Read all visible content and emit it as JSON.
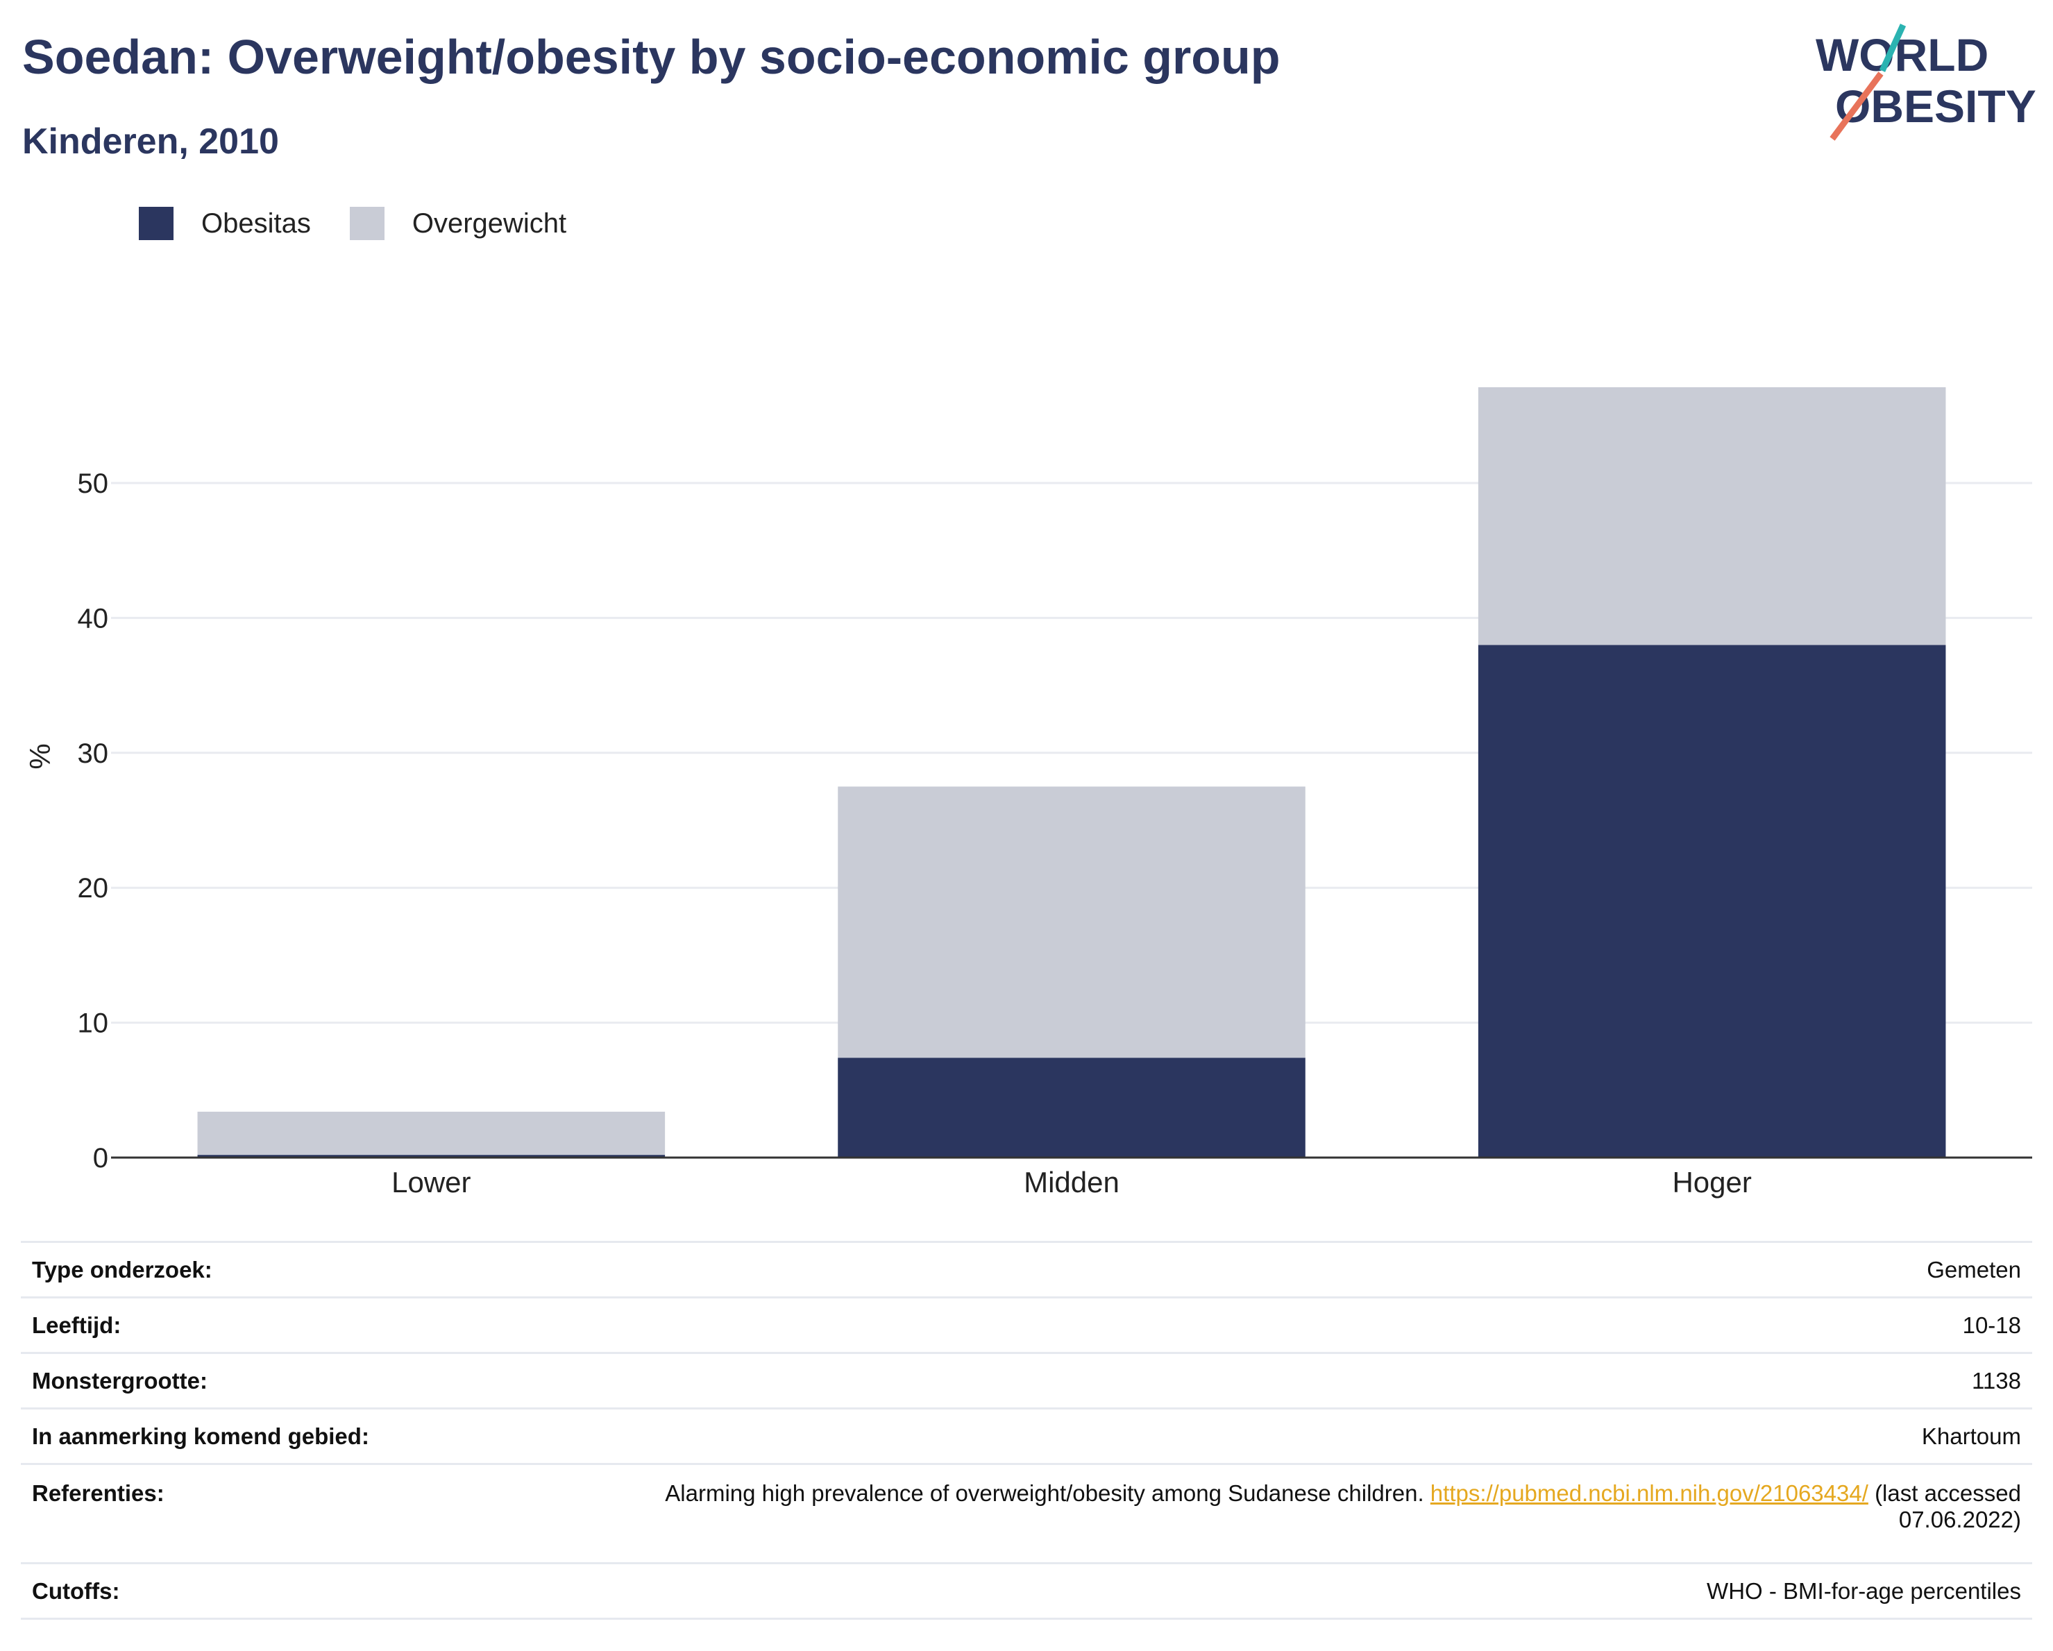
{
  "header": {
    "title": "Soedan: Overweight/obesity by socio-economic group",
    "subtitle": "Kinderen, 2010"
  },
  "logo": {
    "line1": "WORLD",
    "line2": "OBESITY",
    "colors": {
      "text": "#2b365f",
      "slash_top": "#2bb3b1",
      "slash_bottom": "#e8735a"
    }
  },
  "legend": [
    {
      "label": "Obesitas",
      "color": "#2b365f"
    },
    {
      "label": "Overgewicht",
      "color": "#c9ccd6"
    }
  ],
  "chart_data": {
    "type": "bar",
    "stacked": true,
    "title": "",
    "xlabel": "",
    "ylabel": "%",
    "ylim": [
      0,
      60
    ],
    "yticks": [
      0,
      10,
      20,
      30,
      40,
      50
    ],
    "grid": true,
    "legend_position": "top-left",
    "categories": [
      "Lower",
      "Midden",
      "Hoger"
    ],
    "series": [
      {
        "name": "Obesitas",
        "color": "#2b365f",
        "values": [
          0.2,
          7.4,
          38.0
        ]
      },
      {
        "name": "Overgewicht",
        "color": "#c9ccd6",
        "values": [
          3.2,
          20.1,
          19.1
        ]
      }
    ]
  },
  "info": {
    "rows": [
      {
        "label": "Type onderzoek:",
        "value": "Gemeten"
      },
      {
        "label": "Leeftijd:",
        "value": "10-18"
      },
      {
        "label": "Monstergrootte:",
        "value": "1138"
      },
      {
        "label": "In aanmerking komend gebied:",
        "value": "Khartoum"
      }
    ],
    "references": {
      "label": "Referenties:",
      "text": "Alarming high prevalence of overweight/obesity among Sudanese children.",
      "link": "https://pubmed.ncbi.nlm.nih.gov/21063434/",
      "suffix_line1": "(last accessed",
      "suffix_line2": "07.06.2022)"
    },
    "cutoffs": {
      "label": "Cutoffs:",
      "value": "WHO - BMI-for-age percentiles"
    }
  }
}
